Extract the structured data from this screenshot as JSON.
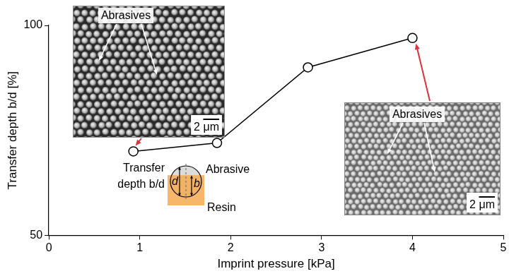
{
  "chart_data": {
    "type": "line",
    "x": [
      0.93,
      1.85,
      2.85,
      4.0
    ],
    "values": [
      70,
      72,
      90,
      97
    ],
    "color": "#000000",
    "marker": "circle",
    "line_style": "solid",
    "xlabel": "Imprint pressure [kPa]",
    "ylabel": "Transfer depth b/d [%]",
    "xlim": [
      0,
      5
    ],
    "xticks": [
      0,
      1,
      2,
      3,
      4,
      5
    ],
    "ylim": [
      50,
      100
    ],
    "yticks": [
      50,
      100
    ],
    "grid": false,
    "annotations": {
      "left_image": {
        "label": "Abrasives",
        "scale_bar": "2 μm"
      },
      "right_image": {
        "label": "Abrasives",
        "scale_bar": "2 μm"
      },
      "schematic": {
        "title": "Transfer depth b/d",
        "diameter": "d",
        "depth": "b",
        "top": "Abrasive",
        "bottom": "Resin"
      }
    }
  }
}
